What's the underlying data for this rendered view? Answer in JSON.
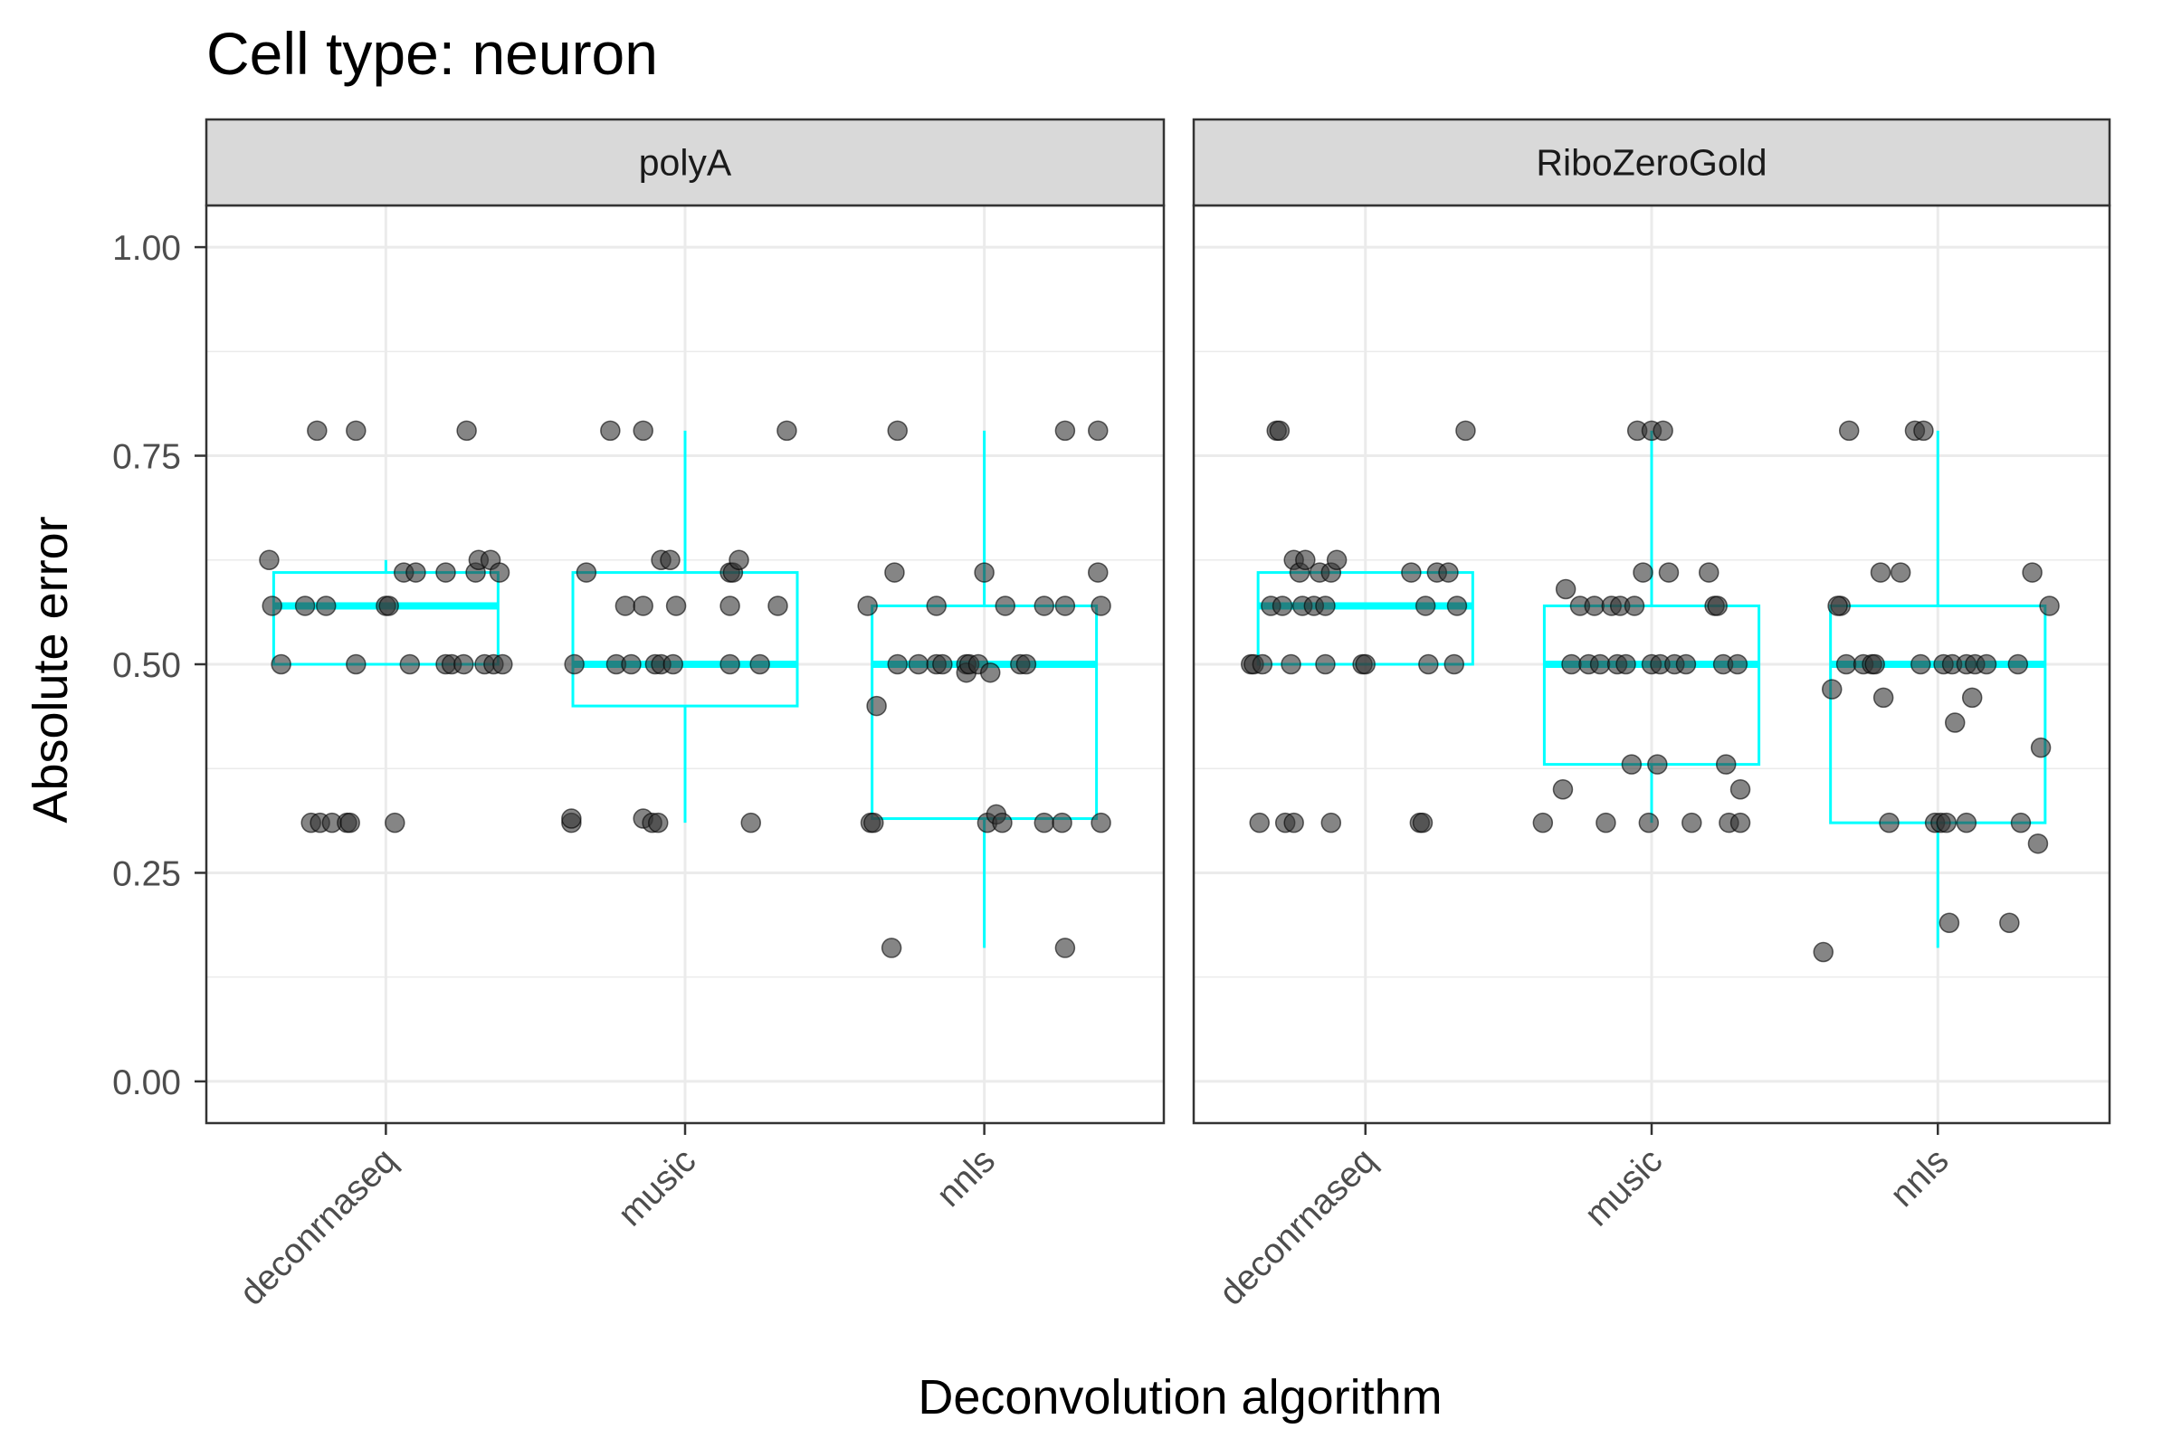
{
  "chart_data": {
    "type": "boxplot",
    "title": "Cell type: neuron",
    "xlabel": "Deconvolution algorithm",
    "ylabel": "Absolute error",
    "ylim": [
      -0.05,
      1.05
    ],
    "yticks": [
      0.0,
      0.25,
      0.5,
      0.75,
      1.0
    ],
    "ytick_labels": [
      "0.00",
      "0.25",
      "0.50",
      "0.75",
      "1.00"
    ],
    "categories": [
      "deconrnaseq",
      "music",
      "nnls"
    ],
    "grid": true,
    "colors": {
      "box": "#00ffff",
      "point": "#333333",
      "panel_border": "#333333",
      "strip_fill": "#d9d9d9",
      "grid": "#ebebeb"
    },
    "facets": [
      {
        "label": "polyA",
        "groups": [
          {
            "category": "deconrnaseq",
            "box": {
              "lower_whisker": 0.5,
              "q1": 0.5,
              "median": 0.57,
              "q3": 0.61,
              "upper_whisker": 0.625
            },
            "points": [
              {
                "x": -0.39,
                "y": 0.625
              },
              {
                "x": -0.38,
                "y": 0.57
              },
              {
                "x": -0.35,
                "y": 0.5
              },
              {
                "x": -0.23,
                "y": 0.78
              },
              {
                "x": -0.1,
                "y": 0.78
              },
              {
                "x": -0.27,
                "y": 0.57
              },
              {
                "x": -0.2,
                "y": 0.57
              },
              {
                "x": -0.1,
                "y": 0.5
              },
              {
                "x": -0.25,
                "y": 0.31
              },
              {
                "x": -0.22,
                "y": 0.31
              },
              {
                "x": -0.18,
                "y": 0.31
              },
              {
                "x": -0.13,
                "y": 0.31
              },
              {
                "x": -0.12,
                "y": 0.31
              },
              {
                "x": 0.03,
                "y": 0.31
              },
              {
                "x": 0.0,
                "y": 0.57
              },
              {
                "x": 0.01,
                "y": 0.57
              },
              {
                "x": 0.06,
                "y": 0.61
              },
              {
                "x": 0.1,
                "y": 0.61
              },
              {
                "x": 0.08,
                "y": 0.5
              },
              {
                "x": 0.2,
                "y": 0.61
              },
              {
                "x": 0.2,
                "y": 0.5
              },
              {
                "x": 0.22,
                "y": 0.5
              },
              {
                "x": 0.26,
                "y": 0.5
              },
              {
                "x": 0.27,
                "y": 0.78
              },
              {
                "x": 0.3,
                "y": 0.61
              },
              {
                "x": 0.31,
                "y": 0.625
              },
              {
                "x": 0.35,
                "y": 0.625
              },
              {
                "x": 0.33,
                "y": 0.5
              },
              {
                "x": 0.36,
                "y": 0.5
              },
              {
                "x": 0.38,
                "y": 0.61
              },
              {
                "x": 0.39,
                "y": 0.5
              }
            ]
          },
          {
            "category": "music",
            "box": {
              "lower_whisker": 0.31,
              "q1": 0.45,
              "median": 0.5,
              "q3": 0.61,
              "upper_whisker": 0.78
            },
            "points": [
              {
                "x": -0.38,
                "y": 0.31
              },
              {
                "x": -0.38,
                "y": 0.315
              },
              {
                "x": -0.37,
                "y": 0.5
              },
              {
                "x": -0.33,
                "y": 0.61
              },
              {
                "x": -0.25,
                "y": 0.78
              },
              {
                "x": -0.14,
                "y": 0.78
              },
              {
                "x": -0.23,
                "y": 0.5
              },
              {
                "x": -0.2,
                "y": 0.57
              },
              {
                "x": -0.18,
                "y": 0.5
              },
              {
                "x": -0.14,
                "y": 0.315
              },
              {
                "x": -0.11,
                "y": 0.31
              },
              {
                "x": -0.09,
                "y": 0.31
              },
              {
                "x": -0.14,
                "y": 0.57
              },
              {
                "x": -0.1,
                "y": 0.5
              },
              {
                "x": -0.08,
                "y": 0.5
              },
              {
                "x": -0.08,
                "y": 0.625
              },
              {
                "x": -0.05,
                "y": 0.625
              },
              {
                "x": -0.04,
                "y": 0.5
              },
              {
                "x": -0.03,
                "y": 0.57
              },
              {
                "x": 0.15,
                "y": 0.57
              },
              {
                "x": 0.15,
                "y": 0.5
              },
              {
                "x": 0.15,
                "y": 0.61
              },
              {
                "x": 0.16,
                "y": 0.61
              },
              {
                "x": 0.18,
                "y": 0.625
              },
              {
                "x": 0.22,
                "y": 0.31
              },
              {
                "x": 0.25,
                "y": 0.5
              },
              {
                "x": 0.31,
                "y": 0.57
              },
              {
                "x": 0.34,
                "y": 0.78
              }
            ]
          },
          {
            "category": "nnls",
            "box": {
              "lower_whisker": 0.16,
              "q1": 0.315,
              "median": 0.5,
              "q3": 0.57,
              "upper_whisker": 0.78
            },
            "points": [
              {
                "x": -0.39,
                "y": 0.57
              },
              {
                "x": -0.38,
                "y": 0.31
              },
              {
                "x": -0.37,
                "y": 0.31
              },
              {
                "x": -0.36,
                "y": 0.45
              },
              {
                "x": -0.31,
                "y": 0.16
              },
              {
                "x": -0.29,
                "y": 0.78
              },
              {
                "x": -0.3,
                "y": 0.61
              },
              {
                "x": -0.29,
                "y": 0.5
              },
              {
                "x": -0.22,
                "y": 0.5
              },
              {
                "x": -0.16,
                "y": 0.5
              },
              {
                "x": -0.16,
                "y": 0.57
              },
              {
                "x": -0.14,
                "y": 0.5
              },
              {
                "x": -0.06,
                "y": 0.5
              },
              {
                "x": -0.06,
                "y": 0.49
              },
              {
                "x": -0.05,
                "y": 0.5
              },
              {
                "x": -0.02,
                "y": 0.5
              },
              {
                "x": 0.0,
                "y": 0.61
              },
              {
                "x": 0.01,
                "y": 0.31
              },
              {
                "x": 0.02,
                "y": 0.49
              },
              {
                "x": 0.04,
                "y": 0.32
              },
              {
                "x": 0.06,
                "y": 0.31
              },
              {
                "x": 0.07,
                "y": 0.57
              },
              {
                "x": 0.12,
                "y": 0.5
              },
              {
                "x": 0.14,
                "y": 0.5
              },
              {
                "x": 0.2,
                "y": 0.57
              },
              {
                "x": 0.2,
                "y": 0.31
              },
              {
                "x": 0.26,
                "y": 0.31
              },
              {
                "x": 0.27,
                "y": 0.16
              },
              {
                "x": 0.27,
                "y": 0.78
              },
              {
                "x": 0.27,
                "y": 0.57
              },
              {
                "x": 0.38,
                "y": 0.78
              },
              {
                "x": 0.38,
                "y": 0.61
              },
              {
                "x": 0.39,
                "y": 0.57
              },
              {
                "x": 0.39,
                "y": 0.31
              }
            ]
          }
        ]
      },
      {
        "label": "RiboZeroGold",
        "groups": [
          {
            "category": "deconrnaseq",
            "box": {
              "lower_whisker": 0.5,
              "q1": 0.5,
              "median": 0.57,
              "q3": 0.61,
              "upper_whisker": 0.61
            },
            "points": [
              {
                "x": -0.4,
                "y": 0.5
              },
              {
                "x": -0.39,
                "y": 0.5
              },
              {
                "x": -0.37,
                "y": 0.31
              },
              {
                "x": -0.36,
                "y": 0.5
              },
              {
                "x": -0.33,
                "y": 0.57
              },
              {
                "x": -0.31,
                "y": 0.78
              },
              {
                "x": -0.3,
                "y": 0.78
              },
              {
                "x": -0.29,
                "y": 0.57
              },
              {
                "x": -0.28,
                "y": 0.31
              },
              {
                "x": -0.25,
                "y": 0.31
              },
              {
                "x": -0.26,
                "y": 0.5
              },
              {
                "x": -0.25,
                "y": 0.625
              },
              {
                "x": -0.23,
                "y": 0.61
              },
              {
                "x": -0.22,
                "y": 0.57
              },
              {
                "x": -0.21,
                "y": 0.625
              },
              {
                "x": -0.18,
                "y": 0.57
              },
              {
                "x": -0.16,
                "y": 0.61
              },
              {
                "x": -0.14,
                "y": 0.57
              },
              {
                "x": -0.14,
                "y": 0.5
              },
              {
                "x": -0.12,
                "y": 0.31
              },
              {
                "x": -0.12,
                "y": 0.61
              },
              {
                "x": -0.1,
                "y": 0.625
              },
              {
                "x": -0.01,
                "y": 0.5
              },
              {
                "x": 0.0,
                "y": 0.5
              },
              {
                "x": 0.16,
                "y": 0.61
              },
              {
                "x": 0.19,
                "y": 0.31
              },
              {
                "x": 0.2,
                "y": 0.31
              },
              {
                "x": 0.21,
                "y": 0.57
              },
              {
                "x": 0.22,
                "y": 0.5
              },
              {
                "x": 0.25,
                "y": 0.61
              },
              {
                "x": 0.29,
                "y": 0.61
              },
              {
                "x": 0.31,
                "y": 0.5
              },
              {
                "x": 0.32,
                "y": 0.57
              },
              {
                "x": 0.35,
                "y": 0.78
              }
            ]
          },
          {
            "category": "music",
            "box": {
              "lower_whisker": 0.31,
              "q1": 0.38,
              "median": 0.5,
              "q3": 0.57,
              "upper_whisker": 0.78
            },
            "points": [
              {
                "x": -0.38,
                "y": 0.31
              },
              {
                "x": -0.31,
                "y": 0.35
              },
              {
                "x": -0.3,
                "y": 0.59
              },
              {
                "x": -0.28,
                "y": 0.5
              },
              {
                "x": -0.25,
                "y": 0.57
              },
              {
                "x": -0.22,
                "y": 0.5
              },
              {
                "x": -0.2,
                "y": 0.57
              },
              {
                "x": -0.18,
                "y": 0.5
              },
              {
                "x": -0.16,
                "y": 0.31
              },
              {
                "x": -0.14,
                "y": 0.57
              },
              {
                "x": -0.12,
                "y": 0.5
              },
              {
                "x": -0.11,
                "y": 0.57
              },
              {
                "x": -0.09,
                "y": 0.5
              },
              {
                "x": -0.07,
                "y": 0.38
              },
              {
                "x": -0.06,
                "y": 0.57
              },
              {
                "x": -0.05,
                "y": 0.78
              },
              {
                "x": -0.03,
                "y": 0.61
              },
              {
                "x": -0.01,
                "y": 0.31
              },
              {
                "x": 0.0,
                "y": 0.5
              },
              {
                "x": 0.0,
                "y": 0.78
              },
              {
                "x": 0.02,
                "y": 0.38
              },
              {
                "x": 0.03,
                "y": 0.5
              },
              {
                "x": 0.04,
                "y": 0.78
              },
              {
                "x": 0.06,
                "y": 0.61
              },
              {
                "x": 0.08,
                "y": 0.5
              },
              {
                "x": 0.12,
                "y": 0.5
              },
              {
                "x": 0.14,
                "y": 0.31
              },
              {
                "x": 0.2,
                "y": 0.61
              },
              {
                "x": 0.22,
                "y": 0.57
              },
              {
                "x": 0.25,
                "y": 0.5
              },
              {
                "x": 0.23,
                "y": 0.57
              },
              {
                "x": 0.26,
                "y": 0.38
              },
              {
                "x": 0.27,
                "y": 0.31
              },
              {
                "x": 0.3,
                "y": 0.5
              },
              {
                "x": 0.31,
                "y": 0.35
              },
              {
                "x": 0.31,
                "y": 0.31
              }
            ]
          },
          {
            "category": "nnls",
            "box": {
              "lower_whisker": 0.16,
              "q1": 0.31,
              "median": 0.5,
              "q3": 0.57,
              "upper_whisker": 0.78
            },
            "points": [
              {
                "x": -0.4,
                "y": 0.155
              },
              {
                "x": -0.37,
                "y": 0.47
              },
              {
                "x": -0.34,
                "y": 0.57
              },
              {
                "x": -0.35,
                "y": 0.57
              },
              {
                "x": -0.32,
                "y": 0.5
              },
              {
                "x": -0.31,
                "y": 0.78
              },
              {
                "x": -0.26,
                "y": 0.5
              },
              {
                "x": -0.23,
                "y": 0.5
              },
              {
                "x": -0.22,
                "y": 0.5
              },
              {
                "x": -0.2,
                "y": 0.61
              },
              {
                "x": -0.19,
                "y": 0.46
              },
              {
                "x": -0.17,
                "y": 0.31
              },
              {
                "x": -0.13,
                "y": 0.61
              },
              {
                "x": -0.08,
                "y": 0.78
              },
              {
                "x": -0.06,
                "y": 0.5
              },
              {
                "x": -0.05,
                "y": 0.78
              },
              {
                "x": -0.01,
                "y": 0.31
              },
              {
                "x": 0.01,
                "y": 0.31
              },
              {
                "x": 0.02,
                "y": 0.5
              },
              {
                "x": 0.03,
                "y": 0.31
              },
              {
                "x": 0.04,
                "y": 0.19
              },
              {
                "x": 0.06,
                "y": 0.43
              },
              {
                "x": 0.05,
                "y": 0.5
              },
              {
                "x": 0.1,
                "y": 0.5
              },
              {
                "x": 0.1,
                "y": 0.31
              },
              {
                "x": 0.12,
                "y": 0.46
              },
              {
                "x": 0.13,
                "y": 0.5
              },
              {
                "x": 0.17,
                "y": 0.5
              },
              {
                "x": 0.25,
                "y": 0.19
              },
              {
                "x": 0.29,
                "y": 0.31
              },
              {
                "x": 0.28,
                "y": 0.5
              },
              {
                "x": 0.33,
                "y": 0.61
              },
              {
                "x": 0.35,
                "y": 0.285
              },
              {
                "x": 0.36,
                "y": 0.4
              },
              {
                "x": 0.39,
                "y": 0.57
              }
            ]
          }
        ]
      }
    ]
  }
}
